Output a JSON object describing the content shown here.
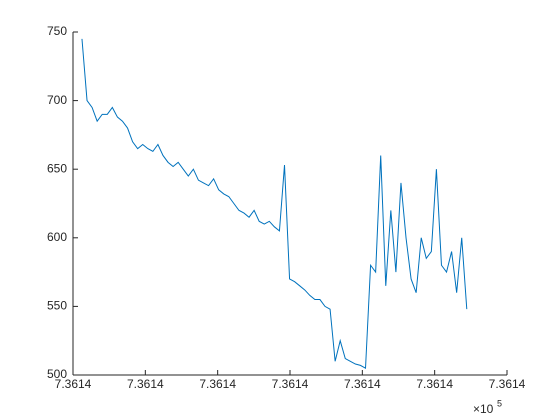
{
  "chart_data": {
    "type": "line",
    "x": [
      736141.062,
      736141.097,
      736141.132,
      736141.167,
      736141.202,
      736141.237,
      736141.272,
      736141.307,
      736141.342,
      736141.377,
      736141.412,
      736141.447,
      736141.482,
      736141.517,
      736141.552,
      736141.587,
      736141.622,
      736141.657,
      736141.692,
      736141.727,
      736141.762,
      736141.797,
      736141.832,
      736141.867,
      736141.902,
      736141.937,
      736141.972,
      736142.007,
      736142.042,
      736142.077,
      736142.112,
      736142.147,
      736142.182,
      736142.217,
      736142.252,
      736142.287,
      736142.322,
      736142.357,
      736142.392,
      736142.427,
      736142.462,
      736142.497,
      736142.532,
      736142.567,
      736142.602,
      736142.637,
      736142.672,
      736142.707,
      736142.742,
      736142.777,
      736142.812,
      736142.847,
      736142.882,
      736142.917,
      736142.952,
      736142.987,
      736143.022,
      736143.057,
      736143.092,
      736143.127,
      736143.162,
      736143.197,
      736143.232,
      736143.267,
      736143.302,
      736143.337,
      736143.372,
      736143.407,
      736143.442,
      736143.477,
      736143.512,
      736143.547,
      736143.582,
      736143.617,
      736143.652,
      736143.687,
      736143.722
    ],
    "series": [
      {
        "color": "#0072BD",
        "values": [
          745,
          700,
          695,
          685,
          690,
          690,
          695,
          688,
          685,
          680,
          670,
          665,
          668,
          665,
          663,
          668,
          660,
          655,
          652,
          655,
          650,
          645,
          650,
          642,
          640,
          638,
          643,
          635,
          632,
          630,
          625,
          620,
          618,
          615,
          620,
          612,
          610,
          612,
          608,
          605,
          653,
          570,
          568,
          565,
          562,
          558,
          555,
          555,
          550,
          548,
          510,
          525,
          512,
          510,
          508,
          507,
          505,
          580,
          575,
          660,
          565,
          620,
          575,
          640,
          600,
          570,
          560,
          600,
          585,
          590,
          650,
          580,
          575,
          590,
          560,
          600,
          548
        ]
      }
    ],
    "xlim": [
      736141,
      736144
    ],
    "xticks": [
      {
        "value": 736141,
        "label": "7.3614"
      },
      {
        "value": 736141.5,
        "label": "7.3614"
      },
      {
        "value": 736142,
        "label": "7.3614"
      },
      {
        "value": 736142.5,
        "label": "7.3614"
      },
      {
        "value": 736143,
        "label": "7.3614"
      },
      {
        "value": 736143.5,
        "label": "7.3614"
      },
      {
        "value": 736144,
        "label": "7.3614"
      }
    ],
    "x_multiplier": {
      "base": "×10",
      "exponent": "5"
    },
    "ylim": [
      500,
      750
    ],
    "yticks": [
      500,
      550,
      600,
      650,
      700,
      750
    ]
  }
}
